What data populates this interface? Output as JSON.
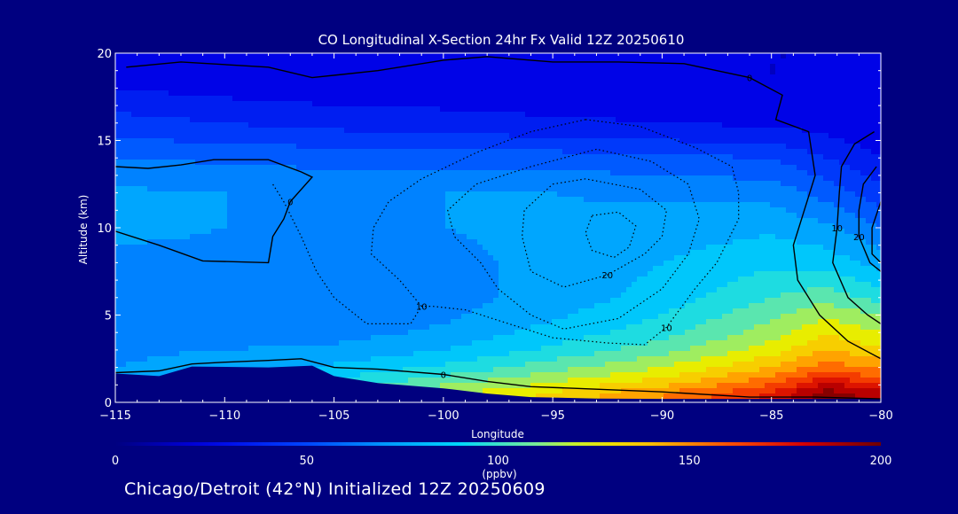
{
  "chart_data": {
    "type": "heatmap",
    "title": "CO Longitudinal X-Section 24hr  Fx Valid 12Z 20250610",
    "xlabel": "Longitude",
    "ylabel": "Altitude (km)",
    "xlim": [
      -115,
      -80
    ],
    "ylim": [
      0,
      20
    ],
    "x_ticks": [
      -115,
      -110,
      -105,
      -100,
      -95,
      -90,
      -85,
      -80
    ],
    "x_tick_labels": [
      "−115",
      "−110",
      "−105",
      "−100",
      "−95",
      "−90",
      "−85",
      "−80"
    ],
    "y_ticks": [
      0,
      5,
      10,
      15,
      20
    ],
    "colorbar": {
      "min": 0,
      "max": 200,
      "ticks": [
        0,
        50,
        100,
        150,
        200
      ],
      "unit_label": "(ppbv)"
    },
    "terrain_km": [
      [
        -115,
        1.65
      ],
      [
        -113,
        1.5
      ],
      [
        -111.5,
        2.05
      ],
      [
        -108,
        2.0
      ],
      [
        -106,
        2.1
      ],
      [
        -105,
        1.5
      ],
      [
        -103,
        1.1
      ],
      [
        -100,
        0.8
      ],
      [
        -98,
        0.5
      ],
      [
        -96,
        0.3
      ],
      [
        -93,
        0.22
      ],
      [
        -90,
        0.2
      ],
      [
        -85,
        0.2
      ],
      [
        -80,
        0.2
      ]
    ],
    "co_field_ppbv": {
      "longitudes": [
        -115,
        -110,
        -105,
        -100,
        -95,
        -90,
        -85,
        -82.5,
        -80
      ],
      "altitudes_km": [
        0.5,
        1,
        1.5,
        2,
        3,
        4,
        5,
        6,
        8,
        10,
        12,
        14,
        15,
        16,
        18,
        20
      ],
      "values": [
        [
          75,
          88,
          102,
          118,
          132,
          150,
          172,
          196,
          185
        ],
        [
          72,
          82,
          95,
          110,
          122,
          138,
          160,
          182,
          172
        ],
        [
          70,
          78,
          88,
          100,
          114,
          128,
          150,
          168,
          158
        ],
        [
          70,
          75,
          82,
          92,
          106,
          120,
          140,
          155,
          148
        ],
        [
          68,
          70,
          72,
          80,
          92,
          106,
          125,
          140,
          132
        ],
        [
          66,
          66,
          66,
          72,
          84,
          96,
          115,
          128,
          120
        ],
        [
          65,
          64,
          60,
          68,
          78,
          90,
          108,
          118,
          110
        ],
        [
          66,
          64,
          64,
          66,
          74,
          84,
          100,
          106,
          96
        ],
        [
          66,
          66,
          64,
          68,
          72,
          80,
          88,
          86,
          76
        ],
        [
          74,
          70,
          68,
          70,
          72,
          74,
          78,
          72,
          60
        ],
        [
          72,
          70,
          68,
          70,
          70,
          68,
          66,
          56,
          44
        ],
        [
          60,
          58,
          56,
          56,
          55,
          52,
          50,
          40,
          30
        ],
        [
          52,
          48,
          46,
          44,
          42,
          40,
          38,
          32,
          26
        ],
        [
          44,
          40,
          36,
          34,
          32,
          30,
          28,
          26,
          24
        ],
        [
          30,
          26,
          24,
          24,
          22,
          22,
          20,
          20,
          20
        ],
        [
          24,
          22,
          20,
          20,
          20,
          20,
          20,
          20,
          20
        ]
      ]
    },
    "contours": [
      {
        "level": 0,
        "label": "0",
        "style": "solid",
        "points": [
          [
            -114.5,
            19.2
          ],
          [
            -112,
            19.5
          ],
          [
            -108,
            19.2
          ],
          [
            -106,
            18.6
          ],
          [
            -103,
            19.0
          ],
          [
            -100,
            19.6
          ],
          [
            -98,
            19.8
          ],
          [
            -95,
            19.5
          ],
          [
            -92,
            19.5
          ],
          [
            -89,
            19.4
          ],
          [
            -86,
            18.6
          ],
          [
            -84.5,
            17.6
          ],
          [
            -84.8,
            16.2
          ],
          [
            -83.3,
            15.5
          ],
          [
            -83,
            13
          ],
          [
            -83.5,
            11
          ],
          [
            -84,
            9
          ],
          [
            -83.8,
            7
          ],
          [
            -82.8,
            5
          ],
          [
            -81.5,
            3.5
          ],
          [
            -80,
            2.5
          ]
        ]
      },
      {
        "level": 0,
        "label": "0",
        "style": "solid",
        "points": [
          [
            -115,
            13.5
          ],
          [
            -113.5,
            13.4
          ],
          [
            -112,
            13.6
          ],
          [
            -110.5,
            13.9
          ],
          [
            -108,
            13.9
          ],
          [
            -106.5,
            13.2
          ],
          [
            -106,
            12.9
          ],
          [
            -107,
            11.5
          ],
          [
            -107.3,
            10.5
          ],
          [
            -107.8,
            9.5
          ],
          [
            -108,
            8
          ],
          [
            -111,
            8.1
          ],
          [
            -113,
            9
          ],
          [
            -115,
            9.8
          ]
        ]
      },
      {
        "level": 0,
        "label": "0",
        "style": "solid",
        "points": [
          [
            -115,
            1.7
          ],
          [
            -113,
            1.8
          ],
          [
            -111.5,
            2.2
          ],
          [
            -110,
            2.3
          ],
          [
            -108,
            2.4
          ],
          [
            -106.5,
            2.5
          ],
          [
            -105,
            2.0
          ],
          [
            -103,
            1.9
          ],
          [
            -100,
            1.6
          ],
          [
            -98,
            1.2
          ],
          [
            -96,
            0.9
          ],
          [
            -94,
            0.8
          ],
          [
            -90,
            0.6
          ],
          [
            -86,
            0.3
          ],
          [
            -83,
            0.3
          ],
          [
            -80,
            0.2
          ]
        ]
      },
      {
        "level": -10,
        "label": "10",
        "style": "dotted",
        "points": [
          [
            -93.5,
            16.2
          ],
          [
            -96,
            15.5
          ],
          [
            -98.5,
            14.3
          ],
          [
            -101,
            12.8
          ],
          [
            -102.5,
            11.5
          ],
          [
            -103.2,
            10.0
          ],
          [
            -103.3,
            8.5
          ],
          [
            -102,
            7
          ],
          [
            -101,
            5.5
          ],
          [
            -101.5,
            4.5
          ],
          [
            -103.5,
            4.5
          ],
          [
            -105,
            6
          ],
          [
            -105.8,
            7.5
          ],
          [
            -106.5,
            9.5
          ],
          [
            -107.3,
            11.5
          ],
          [
            -107.8,
            12.5
          ]
        ]
      },
      {
        "level": -10,
        "label": "10",
        "style": "dotted",
        "points": [
          [
            -93.5,
            16.2
          ],
          [
            -91,
            15.8
          ],
          [
            -88.5,
            14.6
          ],
          [
            -86.8,
            13.5
          ],
          [
            -86.5,
            12
          ],
          [
            -86.5,
            10.5
          ],
          [
            -87.5,
            8
          ],
          [
            -88.5,
            6.5
          ],
          [
            -89.8,
            4.3
          ],
          [
            -90.8,
            3.3
          ],
          [
            -92.5,
            3.4
          ],
          [
            -95,
            3.7
          ],
          [
            -97,
            4.5
          ],
          [
            -99,
            5.3
          ],
          [
            -100.5,
            5.5
          ],
          [
            -101,
            5.5
          ]
        ]
      },
      {
        "level": -15,
        "label": "",
        "style": "dotted",
        "points": [
          [
            -93,
            14.5
          ],
          [
            -96,
            13.5
          ],
          [
            -98.5,
            12.5
          ],
          [
            -99.8,
            11
          ],
          [
            -99.5,
            9.5
          ],
          [
            -98.3,
            8
          ],
          [
            -97.5,
            6.5
          ],
          [
            -96,
            5
          ],
          [
            -94.5,
            4.2
          ],
          [
            -92,
            4.8
          ],
          [
            -90,
            6.5
          ],
          [
            -88.8,
            8.5
          ],
          [
            -88.3,
            10.5
          ],
          [
            -88.8,
            12.5
          ],
          [
            -90.5,
            13.8
          ],
          [
            -93,
            14.5
          ]
        ]
      },
      {
        "level": -20,
        "label": "20",
        "style": "dotted",
        "points": [
          [
            -95,
            12.5
          ],
          [
            -93.5,
            12.8
          ],
          [
            -91,
            12.2
          ],
          [
            -89.8,
            11
          ],
          [
            -90.0,
            9.5
          ],
          [
            -90.8,
            8.5
          ],
          [
            -92.5,
            7.3
          ],
          [
            -94.5,
            6.6
          ],
          [
            -96,
            7.5
          ],
          [
            -96.4,
            9.5
          ],
          [
            -96.3,
            11.0
          ],
          [
            -95,
            12.5
          ]
        ]
      },
      {
        "level": -25,
        "label": "",
        "style": "dotted",
        "points": [
          [
            -93.2,
            10.7
          ],
          [
            -92.0,
            10.9
          ],
          [
            -91.2,
            10.1
          ],
          [
            -91.5,
            8.9
          ],
          [
            -92.2,
            8.3
          ],
          [
            -93.2,
            8.7
          ],
          [
            -93.5,
            9.7
          ],
          [
            -93.2,
            10.7
          ]
        ]
      },
      {
        "level": 10,
        "label": "10",
        "style": "solid",
        "points": [
          [
            -80.3,
            15.5
          ],
          [
            -81.2,
            14.8
          ],
          [
            -81.8,
            13.5
          ],
          [
            -81.9,
            12
          ],
          [
            -82,
            10
          ],
          [
            -82.2,
            8
          ],
          [
            -81.5,
            6
          ],
          [
            -80.6,
            5
          ],
          [
            -80,
            4.5
          ]
        ]
      },
      {
        "level": 20,
        "label": "20",
        "style": "solid",
        "points": [
          [
            -80.2,
            13.5
          ],
          [
            -80.8,
            12.5
          ],
          [
            -81.0,
            11
          ],
          [
            -81.0,
            9.5
          ],
          [
            -80.5,
            8
          ],
          [
            -80,
            7.5
          ]
        ]
      },
      {
        "level": 30,
        "label": "",
        "style": "solid",
        "points": [
          [
            -80,
            11.5
          ],
          [
            -80.4,
            10
          ],
          [
            -80.4,
            8.5
          ],
          [
            -80,
            8
          ]
        ]
      }
    ]
  },
  "footer": {
    "caption": "Chicago/Detroit (42°N) Initialized 12Z 20250609"
  }
}
